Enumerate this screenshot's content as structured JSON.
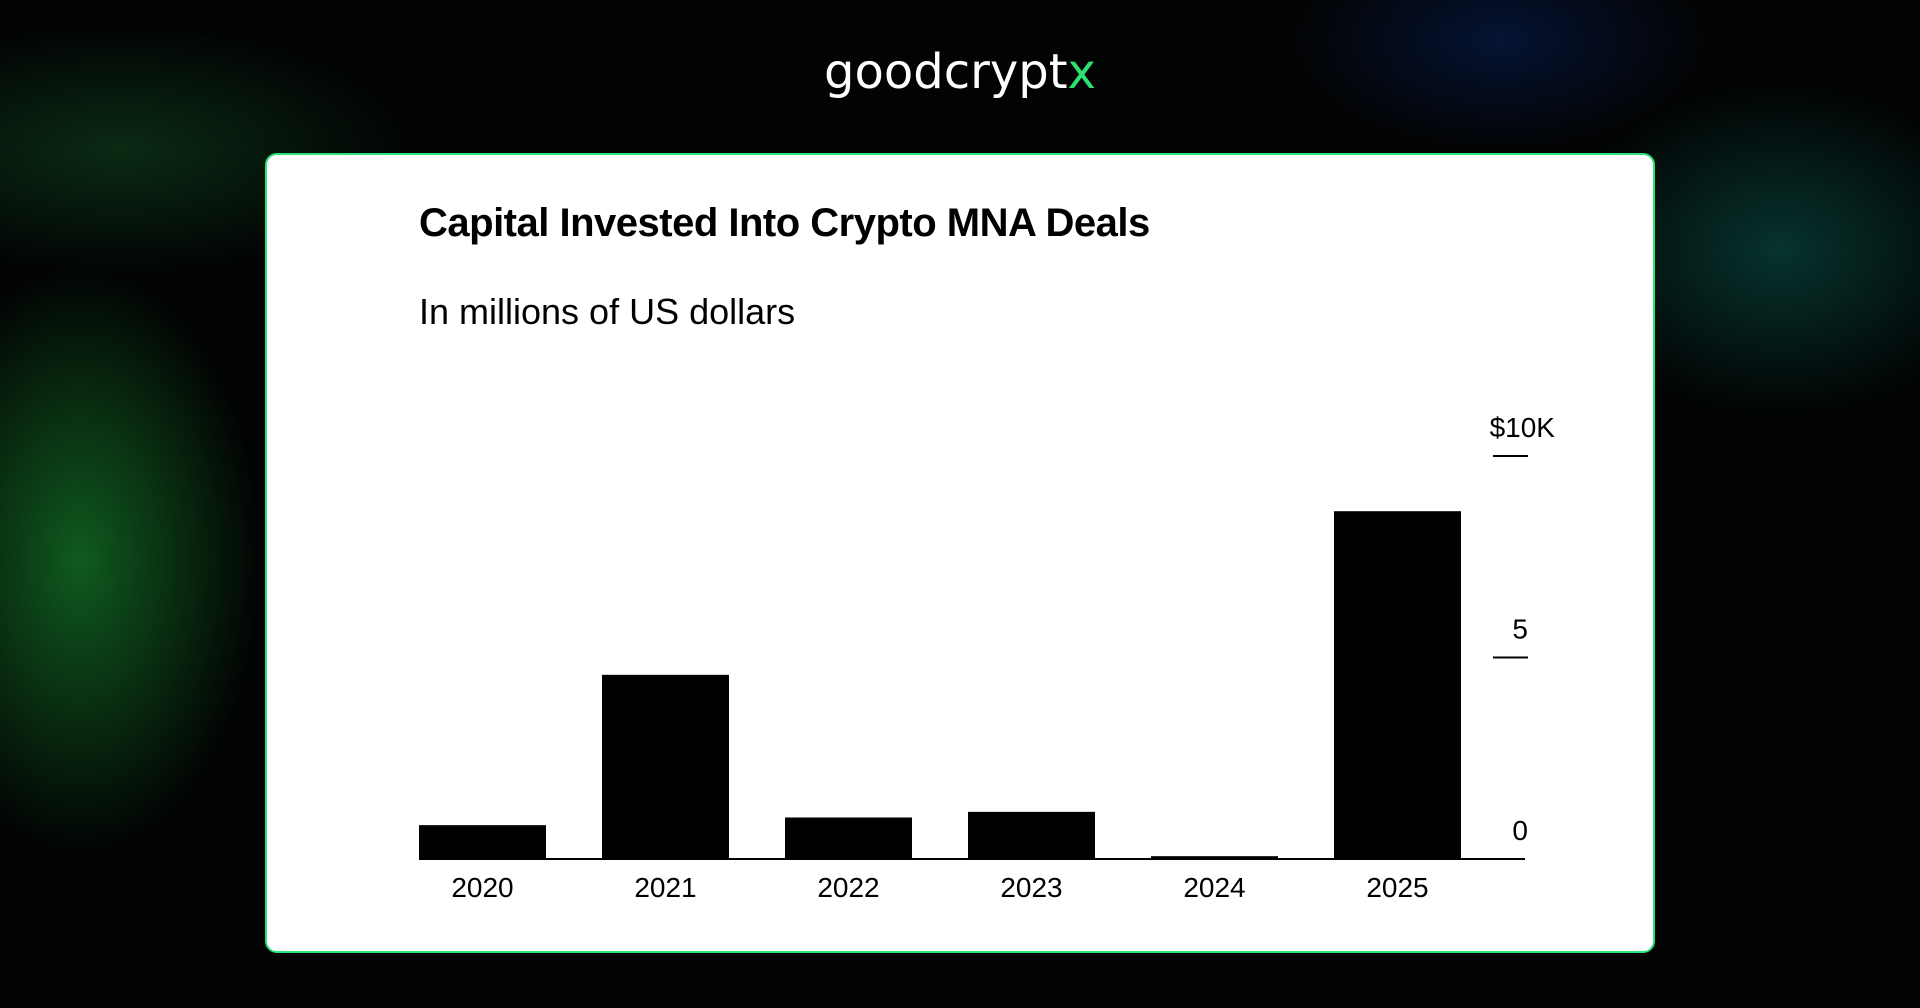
{
  "brand": {
    "logo_text": "goodcrypt",
    "logo_accent": "x"
  },
  "colors": {
    "bar": "#000000",
    "card_border": "#2ee27a",
    "accent": "#2fe070"
  },
  "chart_data": {
    "type": "bar",
    "title": "Capital Invested Into Crypto MNA Deals",
    "subtitle": "In millions of US dollars",
    "categories": [
      "2020",
      "2021",
      "2022",
      "2023",
      "2024",
      "2025"
    ],
    "values": [
      0.84,
      4.57,
      1.03,
      1.17,
      0.07,
      8.63
    ],
    "y_unit": "$10K",
    "ylim": [
      0,
      10
    ],
    "y_ticks": [
      {
        "value": 0,
        "label": "0"
      },
      {
        "value": 5,
        "label": "5"
      },
      {
        "value": 10,
        "label": "$10K"
      }
    ],
    "y_axis_side": "right",
    "grid": false,
    "legend": "none"
  }
}
